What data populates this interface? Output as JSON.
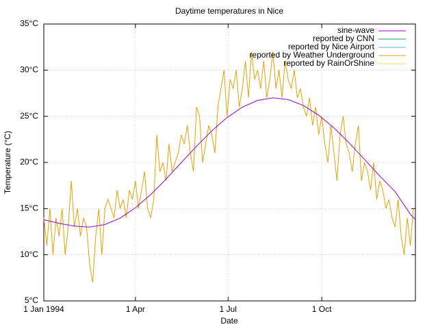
{
  "chart_data": {
    "type": "line",
    "title": "Daytime temperatures in Nice",
    "x_label": "Date",
    "y_label": "Temperature (°C)",
    "xlim": [
      0,
      365
    ],
    "xticks": [
      {
        "value": 0,
        "label": "1 Jan 1994"
      },
      {
        "value": 90,
        "label": "1 Apr"
      },
      {
        "value": 181,
        "label": "1 Jul"
      },
      {
        "value": 273,
        "label": "1 Oct"
      }
    ],
    "ylim": [
      5,
      35
    ],
    "yticks": [
      {
        "value": 5,
        "label": "5°C"
      },
      {
        "value": 10,
        "label": "10°C"
      },
      {
        "value": 15,
        "label": "15°C"
      },
      {
        "value": 20,
        "label": "20°C"
      },
      {
        "value": 25,
        "label": "25°C"
      },
      {
        "value": 30,
        "label": "30°C"
      },
      {
        "value": 35,
        "label": "35°C"
      }
    ],
    "grid": true,
    "legend_position": "top-right",
    "series": [
      {
        "name": "sine-wave",
        "color": "#9400d3",
        "x": [
          0,
          15,
          30,
          45,
          60,
          75,
          90,
          105,
          120,
          135,
          150,
          165,
          180,
          195,
          210,
          225,
          240,
          255,
          270,
          285,
          300,
          315,
          330,
          345,
          360,
          365
        ],
        "values": [
          13.8,
          13.4,
          13.1,
          13.0,
          13.27,
          13.97,
          15.09,
          16.52,
          18.19,
          19.98,
          21.75,
          23.42,
          24.87,
          25.99,
          26.72,
          27.0,
          26.81,
          26.17,
          25.12,
          23.74,
          22.11,
          20.33,
          18.53,
          16.84,
          14.4,
          13.8
        ]
      },
      {
        "name": "reported by CNN",
        "color": "#009e73",
        "x": [],
        "values": []
      },
      {
        "name": "reported by Nice Airport",
        "color": "#56b4e9",
        "x": [],
        "values": []
      },
      {
        "name": "reported by Weather Underground",
        "color": "#e69f00",
        "x": [
          0,
          3,
          6,
          9,
          12,
          15,
          18,
          21,
          24,
          27,
          30,
          33,
          36,
          39,
          42,
          45,
          48,
          51,
          54,
          57,
          60,
          63,
          66,
          69,
          72,
          75,
          78,
          81,
          84,
          87,
          90,
          93,
          96,
          99,
          102,
          105,
          108,
          111,
          114,
          117,
          120,
          123,
          126,
          129,
          132,
          135,
          138,
          141,
          144,
          147,
          150,
          153,
          156,
          159,
          162,
          165,
          168,
          171,
          174,
          177,
          180,
          183,
          186,
          189,
          192,
          195,
          198,
          201,
          204,
          207,
          210,
          213,
          216,
          219,
          222,
          225,
          228,
          231,
          234,
          237,
          240,
          243,
          246,
          249,
          252,
          255,
          258,
          261,
          264,
          267,
          270,
          273,
          276,
          279,
          282,
          285,
          288,
          291,
          294,
          297,
          300,
          303,
          306,
          309,
          312,
          315,
          318,
          321,
          324,
          327,
          330,
          333,
          336,
          339,
          342,
          345,
          348,
          351,
          354,
          357,
          360,
          363
        ],
        "values": [
          14,
          11,
          15,
          10,
          14,
          12,
          15,
          10,
          13,
          18,
          13,
          15,
          12,
          14,
          13,
          9,
          7,
          12,
          15,
          10,
          15,
          16,
          15,
          14,
          17,
          15,
          16,
          14,
          17,
          16,
          18,
          15,
          17,
          19,
          15,
          14,
          16,
          23,
          19,
          20,
          18,
          22,
          19,
          20,
          21,
          23,
          22,
          24,
          21,
          19,
          26,
          25,
          20,
          22,
          24,
          23,
          21,
          26,
          28,
          30,
          25,
          29,
          28,
          30,
          26,
          28,
          31,
          27,
          32,
          29,
          30,
          28,
          31,
          27,
          29,
          32,
          28,
          30,
          27,
          31,
          29,
          28,
          30,
          27,
          28,
          26,
          25,
          27,
          24,
          26,
          23,
          25,
          22,
          20,
          24,
          21,
          18,
          23,
          25,
          22,
          21,
          19,
          22,
          24,
          18,
          20,
          19,
          17,
          20,
          16,
          18,
          17,
          15,
          16,
          14,
          13,
          16,
          12,
          10,
          14,
          11,
          15
        ]
      },
      {
        "name": "reported by RainOrShine",
        "color": "#f0e442",
        "x": [],
        "values": []
      }
    ]
  }
}
